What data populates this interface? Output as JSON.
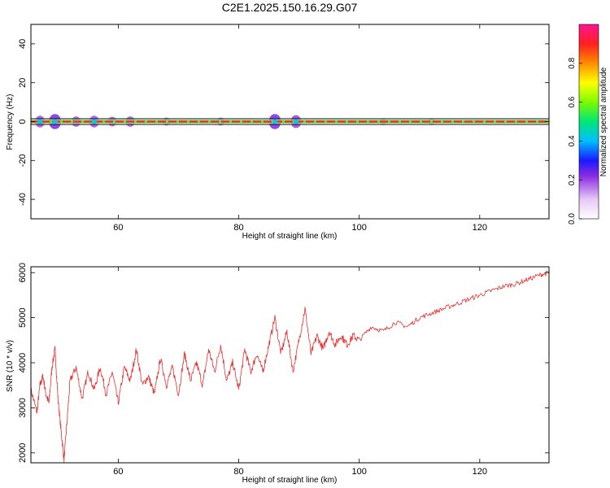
{
  "title": "C2E1.2025.150.16.29.G07",
  "colors": {
    "snr_line": "#e83030",
    "background": "#ffffff",
    "axes": "#000000"
  },
  "chart_data": [
    {
      "type": "heatmap",
      "title": "C2E1.2025.150.16.29.G07",
      "xlabel": "Height of straight line (km)",
      "ylabel": "Frequency (Hz)",
      "xlim": [
        45.5,
        131.5
      ],
      "ylim": [
        -50,
        50
      ],
      "xticks": [
        60,
        80,
        100,
        120
      ],
      "yticks": [
        40,
        20,
        0,
        -20,
        -40
      ],
      "xtick_labels": [
        "60",
        "80",
        "100",
        "120"
      ],
      "ytick_labels": [
        "40",
        "20",
        "0",
        "-20",
        "-40"
      ],
      "grid": false,
      "colorbar": {
        "label": "Normalized spectral amplitude",
        "range": [
          0,
          1
        ],
        "ticks": [
          0.0,
          0.2,
          0.4,
          0.6,
          0.8
        ],
        "tick_labels": [
          "0.0",
          "0.2",
          "0.4",
          "0.6",
          "0.8"
        ],
        "colormap": "rainbow (white, magenta, blue, cyan, green, yellow, orange, red, pink)"
      },
      "dominant_frequency_hz": 0,
      "band_boundaries_hz": [
        -1.5,
        1.5
      ],
      "energy_blobs": [
        {
          "x": 47,
          "amplitude": 0.3
        },
        {
          "x": 49.5,
          "amplitude": 0.45
        },
        {
          "x": 53,
          "amplitude": 0.25
        },
        {
          "x": 56,
          "amplitude": 0.3
        },
        {
          "x": 59,
          "amplitude": 0.22
        },
        {
          "x": 62,
          "amplitude": 0.25
        },
        {
          "x": 68,
          "amplitude": 0.15
        },
        {
          "x": 77,
          "amplitude": 0.15
        },
        {
          "x": 86,
          "amplitude": 0.45
        },
        {
          "x": 89.5,
          "amplitude": 0.35
        },
        {
          "x": 104,
          "amplitude": 0.1
        },
        {
          "x": 112,
          "amplitude": 0.1
        }
      ]
    },
    {
      "type": "line",
      "xlabel": "Height of straight line (km)",
      "ylabel": "SNR (10 * v/v)",
      "xlim": [
        45.5,
        131.5
      ],
      "ylim": [
        1780,
        6130
      ],
      "xticks": [
        60,
        80,
        100,
        120
      ],
      "yticks": [
        2000,
        3000,
        4000,
        5000,
        6000
      ],
      "xtick_labels": [
        "60",
        "80",
        "100",
        "120"
      ],
      "ytick_labels": [
        "2000",
        "3000",
        "4000",
        "5000",
        "6000"
      ],
      "grid": false,
      "series": [
        {
          "color": "#e83030",
          "x": [
            45.5,
            46.5,
            47.0,
            47.5,
            48.0,
            48.5,
            49.0,
            49.5,
            50.0,
            50.5,
            51.0,
            51.5,
            52.0,
            53.0,
            54.0,
            55.0,
            56.0,
            57.0,
            58.0,
            59.0,
            60.0,
            61.0,
            62.0,
            63.0,
            64.0,
            65.0,
            66.0,
            67.0,
            68.0,
            69.0,
            70.0,
            71.0,
            72.0,
            73.0,
            74.0,
            75.0,
            76.0,
            77.0,
            78.0,
            79.0,
            80.0,
            81.0,
            82.0,
            83.0,
            84.0,
            85.0,
            86.0,
            87.0,
            88.0,
            89.0,
            90.0,
            91.0,
            92.0,
            93.0,
            94.0,
            95.0,
            96.0,
            97.0,
            98.0,
            99.0,
            100.0,
            102.0,
            104.0,
            106.0,
            108.0,
            110.0,
            112.0,
            114.0,
            116.0,
            118.0,
            120.0,
            122.0,
            124.0,
            126.0,
            128.0,
            130.0,
            131.5
          ],
          "y": [
            3400,
            2900,
            3500,
            3700,
            3300,
            3100,
            3900,
            4300,
            3200,
            2500,
            1850,
            2700,
            3600,
            3900,
            3200,
            3800,
            3400,
            3900,
            3300,
            3800,
            3100,
            3900,
            3600,
            4300,
            3500,
            3700,
            3300,
            4100,
            3500,
            3900,
            3300,
            4200,
            3600,
            4000,
            3500,
            4300,
            3800,
            4400,
            3600,
            4000,
            3400,
            4300,
            3800,
            4200,
            3800,
            4400,
            5000,
            4200,
            4700,
            3800,
            4500,
            5200,
            4200,
            4600,
            4300,
            4700,
            4400,
            4600,
            4400,
            4600,
            4500,
            4800,
            4700,
            4900,
            4800,
            5000,
            5100,
            5200,
            5300,
            5400,
            5500,
            5600,
            5700,
            5750,
            5850,
            5950,
            6000
          ]
        }
      ]
    }
  ]
}
